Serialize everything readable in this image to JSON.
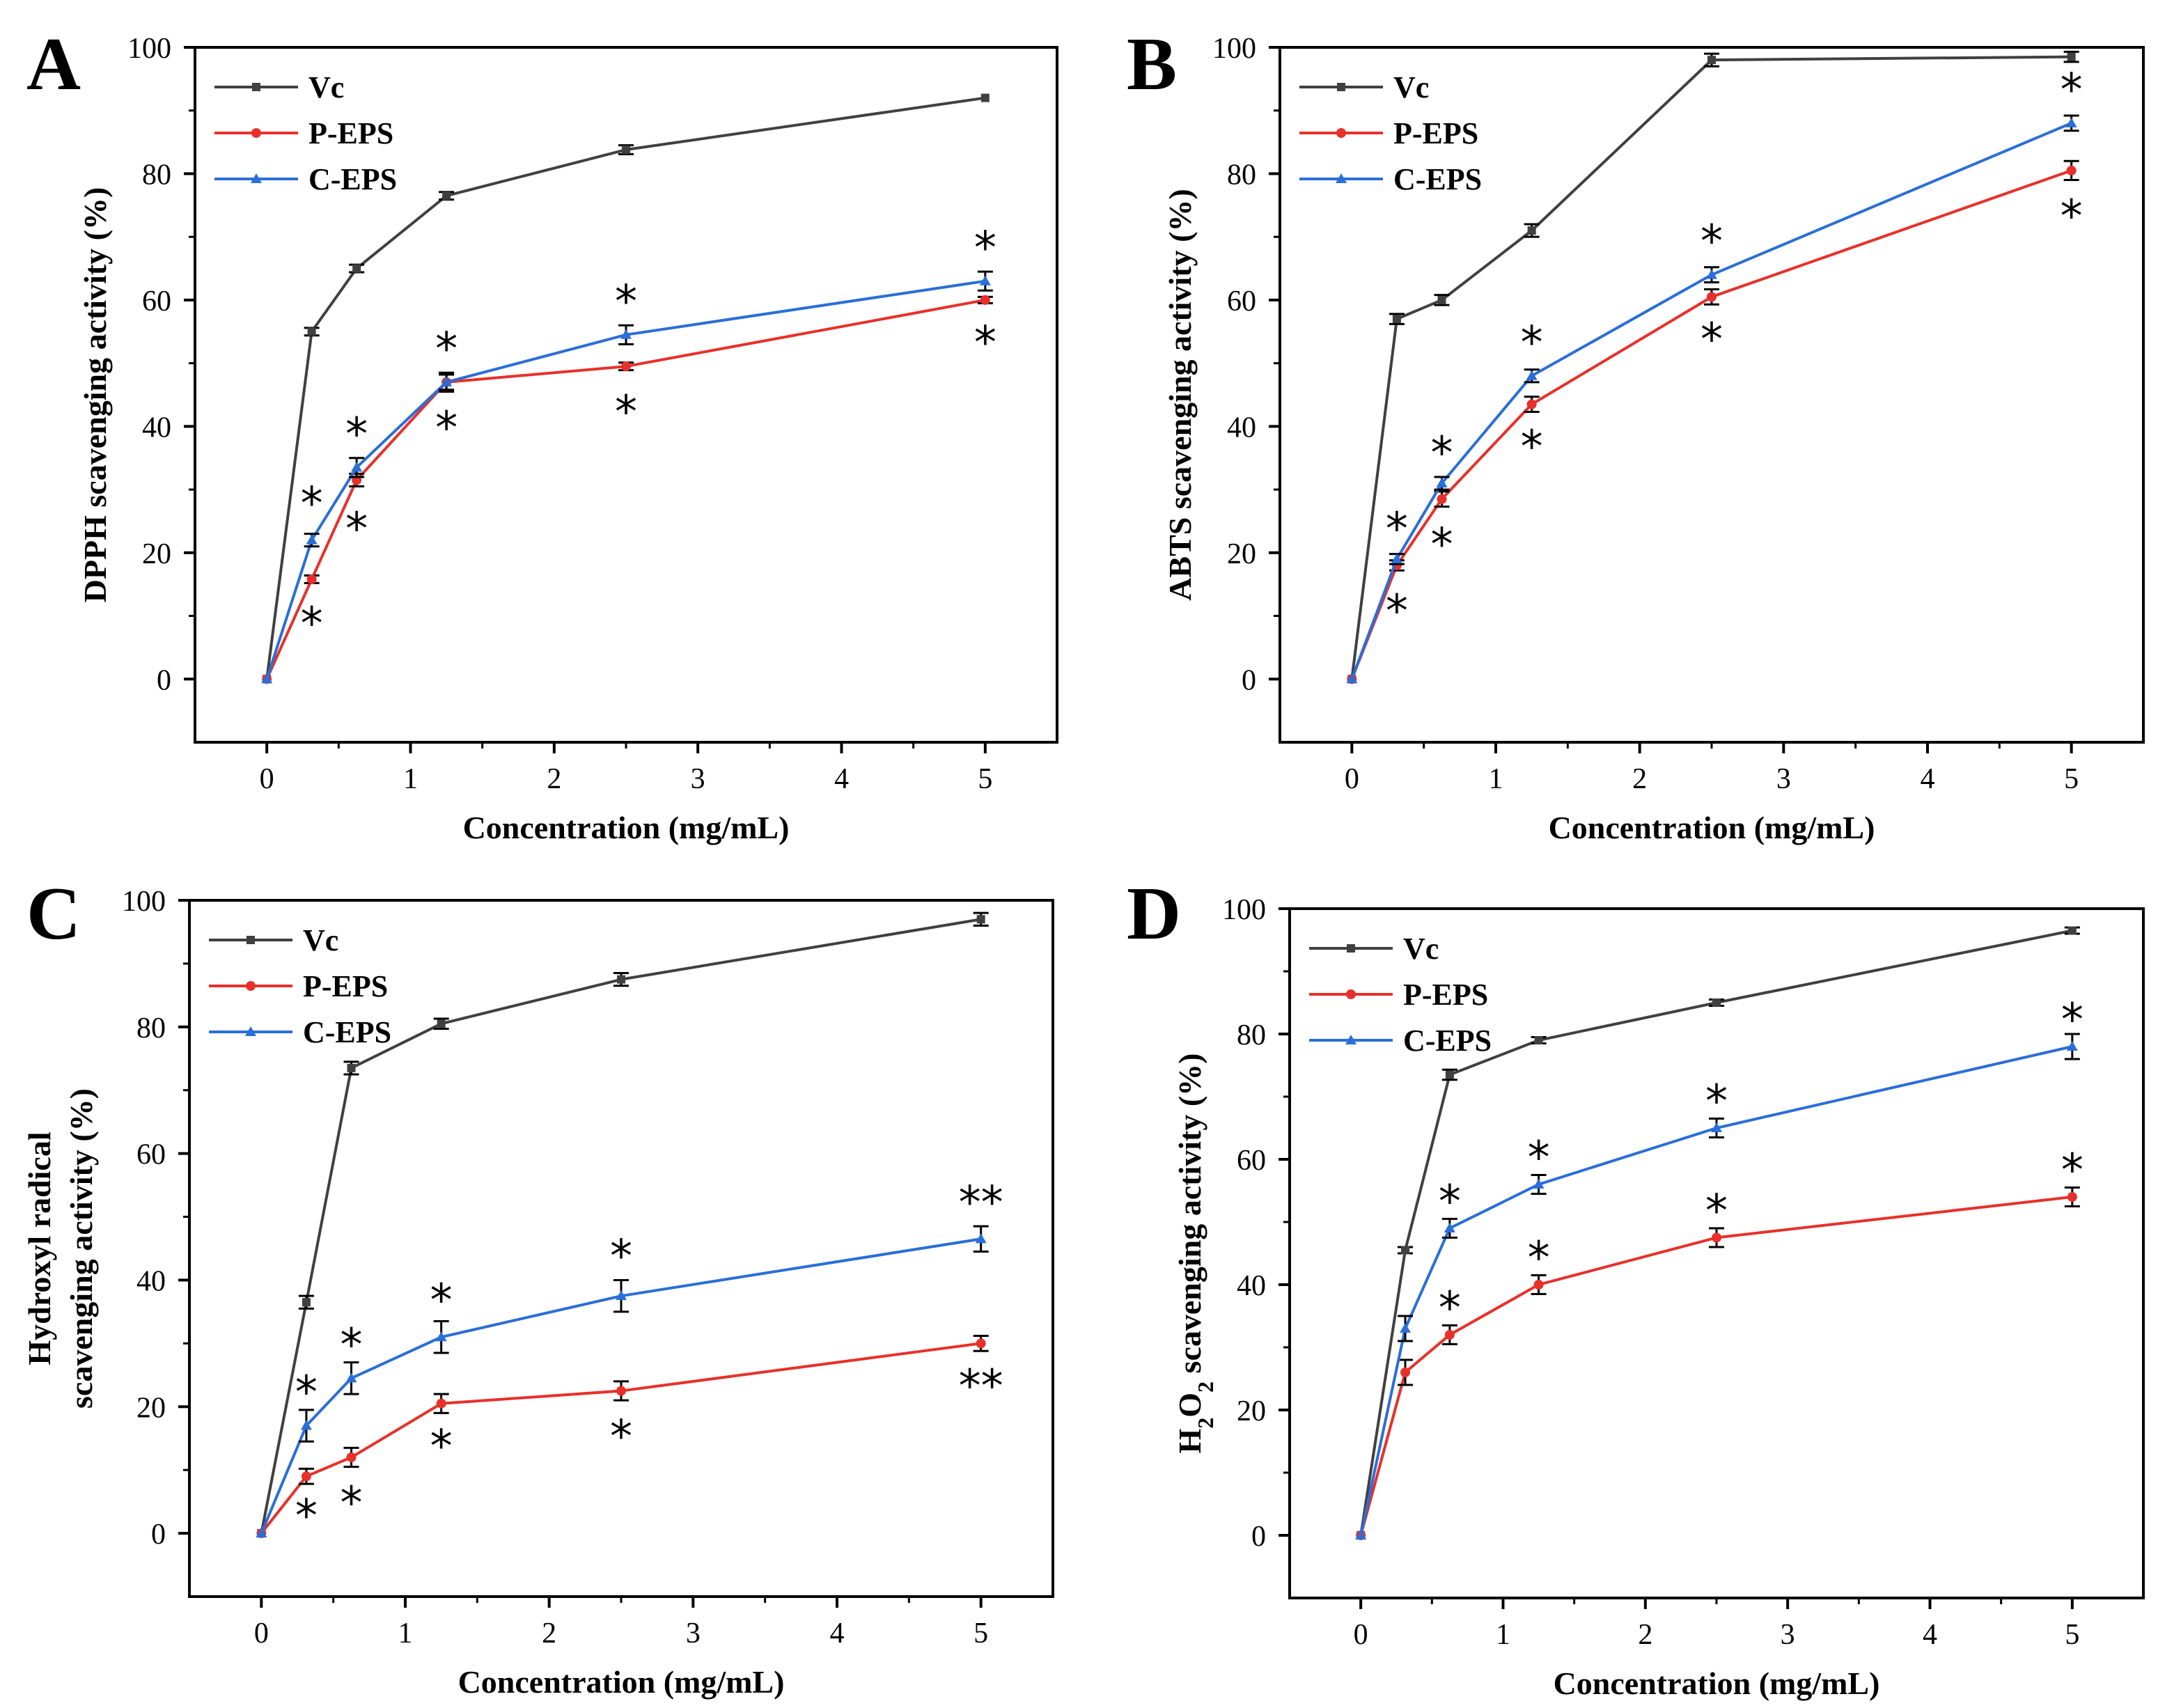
{
  "chart_data": [
    {
      "panel": "A",
      "type": "line",
      "xlabel": "Concentration (mg/mL)",
      "ylabel": [
        "DPPH scavenging activity (%)"
      ],
      "xlim": [
        -0.5,
        5.5
      ],
      "ylim": [
        -10,
        100
      ],
      "xticks": [
        0,
        1,
        2,
        3,
        4,
        5
      ],
      "yticks": [
        0,
        20,
        40,
        60,
        80,
        100
      ],
      "x": [
        0,
        0.3125,
        0.625,
        1.25,
        2.5,
        5
      ],
      "legend": "top-left",
      "series": [
        {
          "name": "Vc",
          "color": "#404040",
          "marker": "square",
          "values": [
            0,
            55,
            65,
            76.5,
            83.8,
            92
          ],
          "errors": [
            0.3,
            0.6,
            0.6,
            0.6,
            0.7,
            0.4
          ]
        },
        {
          "name": "P-EPS",
          "color": "#e8302a",
          "marker": "circle",
          "values": [
            0,
            15.8,
            31.5,
            47,
            49.5,
            60
          ],
          "errors": [
            0.3,
            0.6,
            1,
            1.5,
            0.6,
            0.5
          ]
        },
        {
          "name": "C-EPS",
          "color": "#2a6ed8",
          "marker": "triangle",
          "values": [
            0,
            22,
            33.5,
            47,
            54.5,
            63
          ],
          "errors": [
            0.3,
            1,
            1.5,
            1.2,
            1.5,
            1.5
          ]
        }
      ],
      "annotations": [
        {
          "text": "*",
          "x": 0.3125,
          "y": 28
        },
        {
          "text": "*",
          "x": 0.3125,
          "y": 9
        },
        {
          "text": "*",
          "x": 0.625,
          "y": 39
        },
        {
          "text": "*",
          "x": 0.625,
          "y": 24
        },
        {
          "text": "*",
          "x": 1.25,
          "y": 52.5
        },
        {
          "text": "*",
          "x": 1.25,
          "y": 40
        },
        {
          "text": "*",
          "x": 2.5,
          "y": 60
        },
        {
          "text": "*",
          "x": 2.5,
          "y": 42.5
        },
        {
          "text": "*",
          "x": 5,
          "y": 68.5
        },
        {
          "text": "*",
          "x": 5,
          "y": 53.5
        }
      ]
    },
    {
      "panel": "B",
      "type": "line",
      "xlabel": "Concentration (mg/mL)",
      "ylabel": [
        "ABTS scavenging activity (%)"
      ],
      "xlim": [
        -0.5,
        5.5
      ],
      "ylim": [
        -10,
        100
      ],
      "xticks": [
        0,
        1,
        2,
        3,
        4,
        5
      ],
      "yticks": [
        0,
        20,
        40,
        60,
        80,
        100
      ],
      "x": [
        0,
        0.3125,
        0.625,
        1.25,
        2.5,
        5
      ],
      "legend": "top-left",
      "series": [
        {
          "name": "Vc",
          "color": "#404040",
          "marker": "square",
          "values": [
            0,
            57,
            60,
            71,
            98,
            98.5
          ],
          "errors": [
            0.3,
            0.8,
            0.8,
            1,
            1,
            0.8
          ]
        },
        {
          "name": "P-EPS",
          "color": "#e8302a",
          "marker": "circle",
          "values": [
            0,
            18,
            28.5,
            43.5,
            60.5,
            80.5
          ],
          "errors": [
            0.3,
            0.8,
            1.2,
            1.2,
            1.2,
            1.5
          ]
        },
        {
          "name": "C-EPS",
          "color": "#2a6ed8",
          "marker": "triangle",
          "values": [
            0,
            19,
            31,
            48,
            64,
            88
          ],
          "errors": [
            0.3,
            0.8,
            1,
            1,
            1.2,
            1.2
          ]
        }
      ],
      "annotations": [
        {
          "text": "*",
          "x": 0.3125,
          "y": 24
        },
        {
          "text": "*",
          "x": 0.3125,
          "y": 11
        },
        {
          "text": "*",
          "x": 0.625,
          "y": 36
        },
        {
          "text": "*",
          "x": 0.625,
          "y": 21.5
        },
        {
          "text": "*",
          "x": 1.25,
          "y": 53.5
        },
        {
          "text": "*",
          "x": 1.25,
          "y": 37
        },
        {
          "text": "*",
          "x": 2.5,
          "y": 69.5
        },
        {
          "text": "*",
          "x": 2.5,
          "y": 54
        },
        {
          "text": "*",
          "x": 5,
          "y": 93.5
        },
        {
          "text": "*",
          "x": 5,
          "y": 73.5
        }
      ]
    },
    {
      "panel": "C",
      "type": "line",
      "xlabel": "Concentration (mg/mL)",
      "ylabel": [
        "Hydroxyl radical",
        "scavenging activity (%)"
      ],
      "xlim": [
        -0.5,
        5.5
      ],
      "ylim": [
        -10,
        100
      ],
      "xticks": [
        0,
        1,
        2,
        3,
        4,
        5
      ],
      "yticks": [
        0,
        20,
        40,
        60,
        80,
        100
      ],
      "x": [
        0,
        0.3125,
        0.625,
        1.25,
        2.5,
        5
      ],
      "legend": "top-left",
      "series": [
        {
          "name": "Vc",
          "color": "#404040",
          "marker": "square",
          "values": [
            0,
            36.5,
            73.5,
            80.5,
            87.5,
            97
          ],
          "errors": [
            0.3,
            1,
            1,
            0.8,
            1,
            1
          ]
        },
        {
          "name": "P-EPS",
          "color": "#e8302a",
          "marker": "circle",
          "values": [
            0,
            9,
            12,
            20.5,
            22.5,
            30
          ],
          "errors": [
            0.3,
            1.2,
            1.5,
            1.5,
            1.5,
            1.2
          ]
        },
        {
          "name": "C-EPS",
          "color": "#2a6ed8",
          "marker": "triangle",
          "values": [
            0,
            17,
            24.5,
            31,
            37.5,
            46.5
          ],
          "errors": [
            0.3,
            2.5,
            2.5,
            2.5,
            2.5,
            2
          ]
        }
      ],
      "annotations": [
        {
          "text": "*",
          "x": 0.3125,
          "y": 22.5
        },
        {
          "text": "*",
          "x": 0.3125,
          "y": 3
        },
        {
          "text": "*",
          "x": 0.625,
          "y": 30
        },
        {
          "text": "*",
          "x": 0.625,
          "y": 5
        },
        {
          "text": "*",
          "x": 1.25,
          "y": 37
        },
        {
          "text": "*",
          "x": 1.25,
          "y": 14
        },
        {
          "text": "*",
          "x": 2.5,
          "y": 44
        },
        {
          "text": "*",
          "x": 2.5,
          "y": 15.5
        },
        {
          "text": "**",
          "x": 5,
          "y": 52.5
        },
        {
          "text": "**",
          "x": 5,
          "y": 23.5
        }
      ]
    },
    {
      "panel": "D",
      "type": "line",
      "xlabel": "Concentration (mg/mL)",
      "ylabel": [
        "H2O2 scavenging activity (%)"
      ],
      "xlim": [
        -0.5,
        5.5
      ],
      "ylim": [
        -10,
        100
      ],
      "xticks": [
        0,
        1,
        2,
        3,
        4,
        5
      ],
      "yticks": [
        0,
        20,
        40,
        60,
        80,
        100
      ],
      "x": [
        0,
        0.3125,
        0.625,
        1.25,
        2.5,
        5
      ],
      "legend": "top-left",
      "series": [
        {
          "name": "Vc",
          "color": "#404040",
          "marker": "square",
          "values": [
            0,
            45.5,
            73.5,
            79,
            85,
            96.5
          ],
          "errors": [
            0.3,
            0.5,
            0.8,
            0.5,
            0.5,
            0.5
          ]
        },
        {
          "name": "P-EPS",
          "color": "#e8302a",
          "marker": "circle",
          "values": [
            0,
            26,
            32,
            40,
            47.5,
            54
          ],
          "errors": [
            0.3,
            2,
            1.5,
            1.5,
            1.5,
            1.5
          ]
        },
        {
          "name": "C-EPS",
          "color": "#2a6ed8",
          "marker": "triangle",
          "values": [
            0,
            33,
            49,
            56,
            65,
            78
          ],
          "errors": [
            0.3,
            2,
            1.5,
            1.5,
            1.5,
            2
          ]
        }
      ],
      "annotations": [
        {
          "text": "*",
          "x": 0.625,
          "y": 53.5
        },
        {
          "text": "*",
          "x": 0.625,
          "y": 36.5
        },
        {
          "text": "*",
          "x": 1.25,
          "y": 60.5
        },
        {
          "text": "*",
          "x": 1.25,
          "y": 44.5
        },
        {
          "text": "*",
          "x": 2.5,
          "y": 69.5
        },
        {
          "text": "*",
          "x": 2.5,
          "y": 52
        },
        {
          "text": "*",
          "x": 5,
          "y": 82.5
        },
        {
          "text": "*",
          "x": 5,
          "y": 58.5
        }
      ]
    }
  ]
}
